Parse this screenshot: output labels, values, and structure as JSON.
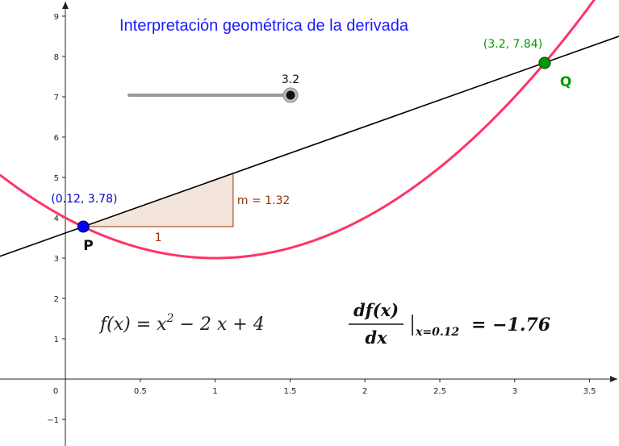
{
  "title": "Interpretación geométrica de la derivada",
  "axes": {
    "x_ticks": [
      "0",
      "0.5",
      "1",
      "1.5",
      "2",
      "2.5",
      "3",
      "3.5"
    ],
    "x_tick_values": [
      0,
      0.5,
      1,
      1.5,
      2,
      2.5,
      3,
      3.5
    ],
    "y_ticks": [
      "−1",
      "1",
      "2",
      "3",
      "4",
      "5",
      "6",
      "7",
      "8",
      "9"
    ],
    "y_tick_values": [
      -1,
      1,
      2,
      3,
      4,
      5,
      6,
      7,
      8,
      9
    ]
  },
  "function": {
    "coefficients": [
      1,
      -2,
      4
    ],
    "label_lhs": "f(x) = x",
    "label_exp": "2",
    "label_rhs": " − 2 x + 4",
    "color": "#ff3366"
  },
  "point_p": {
    "name": "P",
    "x": 0.12,
    "y": 3.78,
    "label": "(0.12, 3.78)",
    "color": "#0000ff"
  },
  "point_q": {
    "name": "Q",
    "x": 3.2,
    "y": 7.84,
    "label": "(3.2, 7.84)",
    "color": "#009900"
  },
  "secant": {
    "slope": 1.32,
    "color": "#000000"
  },
  "slope_triangle": {
    "run": 1,
    "run_label": "1",
    "rise_label": "m = 1.32",
    "fill": "#f3e4dc",
    "stroke": "#993300"
  },
  "slider": {
    "value_label": "3.2",
    "value": 3.2
  },
  "derivative": {
    "numerator": "df(x)",
    "denominator": "dx",
    "subscript": "x=0.12",
    "result": "= −1.76"
  }
}
